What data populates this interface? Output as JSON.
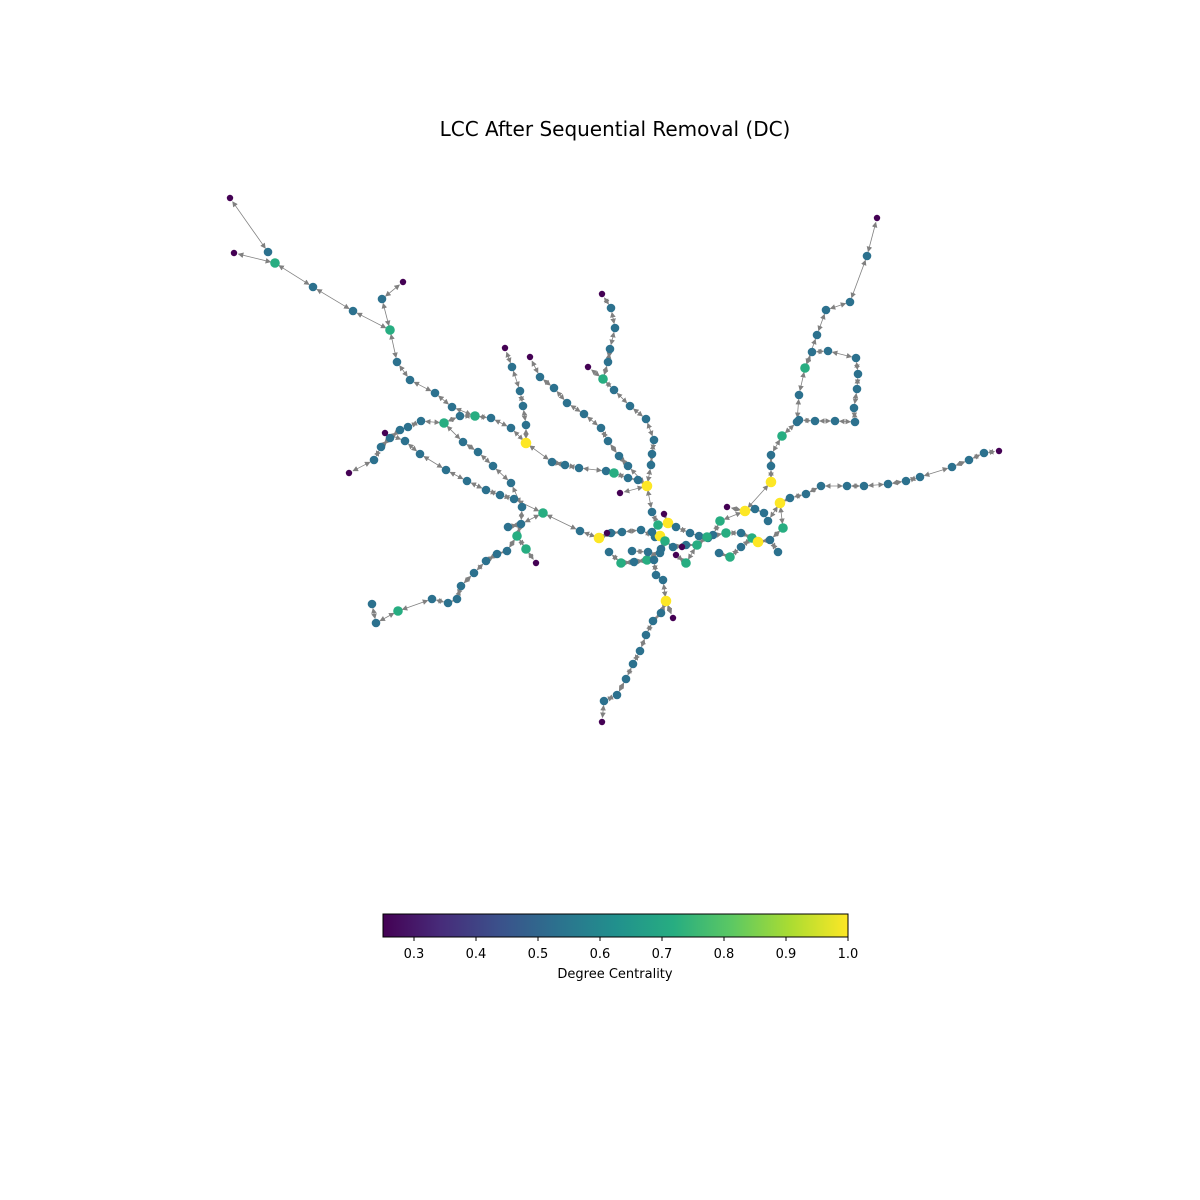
{
  "title": "LCC After Sequential Removal (DC)",
  "colorbar": {
    "label": "Degree Centrality",
    "min": 0.25,
    "max": 1.0,
    "ticks": [
      "0.3",
      "0.4",
      "0.5",
      "0.6",
      "0.7",
      "0.8",
      "0.9",
      "1.0"
    ],
    "colormap": "viridis",
    "colors": [
      "#440154",
      "#472c7a",
      "#3b518b",
      "#2c718e",
      "#21908d",
      "#27ad81",
      "#5cc863",
      "#aadc32",
      "#fde725"
    ]
  },
  "edge_color": "#808080",
  "node_levels": {
    "low": 0.25,
    "mid": 0.5,
    "high": 0.75,
    "top": 1.0
  }
}
